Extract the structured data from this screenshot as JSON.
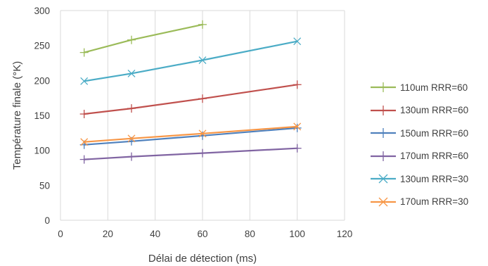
{
  "chart_data": {
    "type": "line",
    "xlabel": "Délai de détection (ms)",
    "ylabel": "Température finale (°K)",
    "xlim": [
      0,
      120
    ],
    "ylim": [
      0,
      300
    ],
    "xticks": [
      0,
      20,
      40,
      60,
      80,
      100,
      120
    ],
    "yticks": [
      0,
      50,
      100,
      150,
      200,
      250,
      300
    ],
    "grid": "vertical",
    "legend_position": "right",
    "series": [
      {
        "name": "110um RRR=60",
        "color": "#9bbb59",
        "marker": "plus",
        "x": [
          10,
          30,
          60
        ],
        "y": [
          240,
          258,
          280
        ]
      },
      {
        "name": "130um RRR=60",
        "color": "#c0504d",
        "marker": "plus",
        "x": [
          10,
          30,
          60,
          100
        ],
        "y": [
          152,
          160,
          174,
          194
        ]
      },
      {
        "name": "150um RRR=60",
        "color": "#4f81bd",
        "marker": "plus",
        "x": [
          10,
          30,
          60,
          100
        ],
        "y": [
          108,
          113,
          121,
          132
        ]
      },
      {
        "name": "170um RRR=60",
        "color": "#8064a2",
        "marker": "plus",
        "x": [
          10,
          30,
          60,
          100
        ],
        "y": [
          87,
          91,
          96,
          103
        ]
      },
      {
        "name": "130um RRR=30",
        "color": "#4bacc6",
        "marker": "x",
        "x": [
          10,
          30,
          60,
          100
        ],
        "y": [
          199,
          210,
          229,
          256
        ]
      },
      {
        "name": "170um RRR=30",
        "color": "#f79646",
        "marker": "x",
        "x": [
          10,
          30,
          60,
          100
        ],
        "y": [
          112,
          117,
          124,
          134
        ]
      }
    ]
  }
}
